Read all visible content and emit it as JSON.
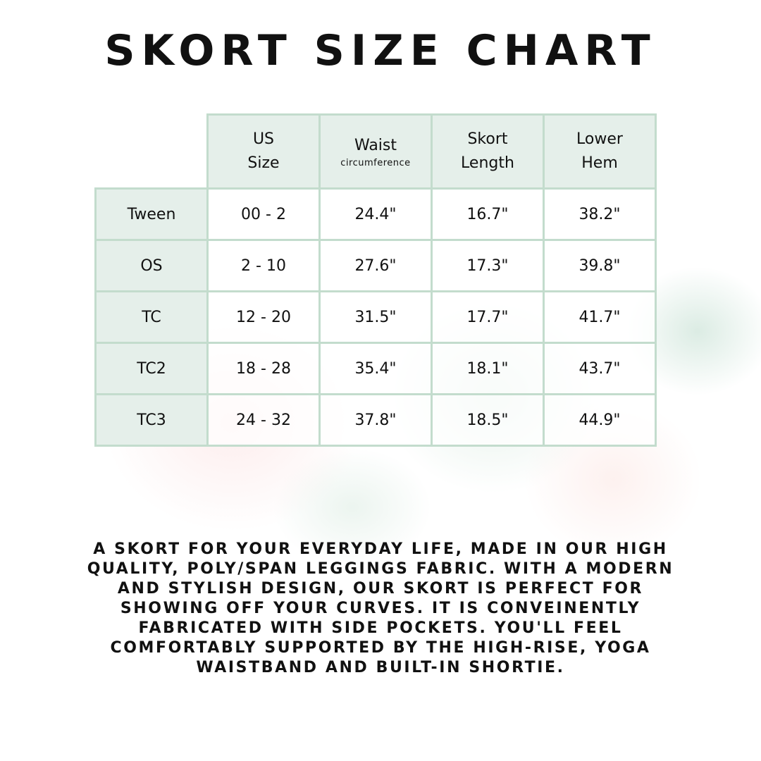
{
  "title": "SKORT SIZE CHART",
  "table": {
    "headers": [
      {
        "main": "US Size",
        "sub": ""
      },
      {
        "main": "Waist",
        "sub": "circumference"
      },
      {
        "main": "Skort Length",
        "sub": ""
      },
      {
        "main": "Lower Hem",
        "sub": ""
      }
    ],
    "rows": [
      {
        "label": "Tween",
        "cells": [
          "00 - 2",
          "24.4\"",
          "16.7\"",
          "38.2\""
        ]
      },
      {
        "label": "OS",
        "cells": [
          "2 - 10",
          "27.6\"",
          "17.3\"",
          "39.8\""
        ]
      },
      {
        "label": "TC",
        "cells": [
          "12 - 20",
          "31.5\"",
          "17.7\"",
          "41.7\""
        ]
      },
      {
        "label": "TC2",
        "cells": [
          "18 - 28",
          "35.4\"",
          "18.1\"",
          "43.7\""
        ]
      },
      {
        "label": "TC3",
        "cells": [
          "24 - 32",
          "37.8\"",
          "18.5\"",
          "44.9\""
        ]
      }
    ]
  },
  "description": [
    "A SKORT FOR YOUR EVERYDAY LIFE, MADE IN OUR HIGH",
    "QUALITY, POLY/SPAN LEGGINGS FABRIC. WITH A MODERN",
    "AND STYLISH DESIGN, OUR SKORT IS PERFECT FOR",
    "SHOWING OFF YOUR CURVES. IT IS CONVEINENTLY",
    "FABRICATED WITH SIDE POCKETS. YOU'LL FEEL",
    "COMFORTABLY SUPPORTED BY THE HIGH-RISE, YOGA",
    "WAISTBAND AND BUILT-IN SHORTIE."
  ],
  "colors": {
    "header_bg": "#e5efea",
    "border": "#c3dccd"
  }
}
